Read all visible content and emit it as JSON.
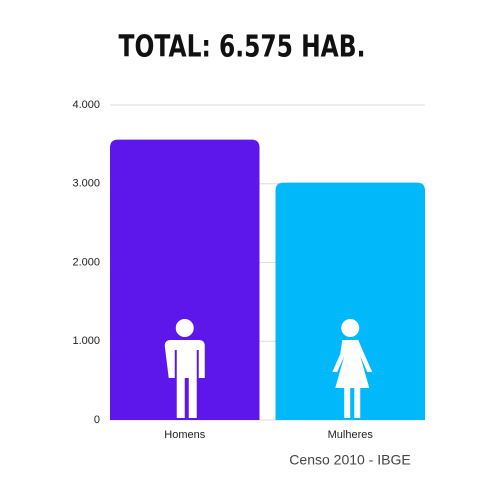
{
  "chart_data": {
    "type": "bar",
    "title": "TOTAL:  6.575 HAB.",
    "source": "Censo 2010 - IBGE",
    "categories": [
      "Homens",
      "Mulheres"
    ],
    "values": [
      3560,
      3015
    ],
    "colors": [
      "#5e17eb",
      "#00b8fa"
    ],
    "ylim": [
      0,
      4000
    ],
    "yticks": [
      0,
      {
        "value": 1000,
        "label": "1.000"
      },
      {
        "value": 2000,
        "label": "2.000"
      },
      {
        "value": 3000,
        "label": "3.000"
      },
      {
        "value": 4000,
        "label": "4.000"
      }
    ],
    "grid": true
  }
}
